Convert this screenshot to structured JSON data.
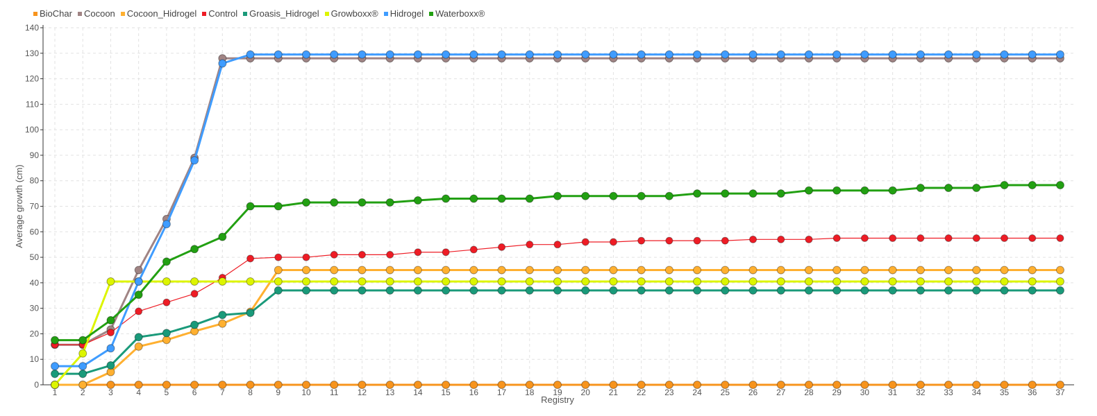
{
  "chart_data": {
    "type": "line",
    "title": "",
    "xlabel": "Registry",
    "ylabel": "Average growth (cm)",
    "ylim": [
      0,
      140
    ],
    "yticks": [
      0,
      10,
      20,
      30,
      40,
      50,
      60,
      70,
      80,
      90,
      100,
      110,
      120,
      130,
      140
    ],
    "x": [
      1,
      2,
      3,
      4,
      5,
      6,
      7,
      8,
      9,
      10,
      11,
      12,
      13,
      14,
      15,
      16,
      17,
      18,
      19,
      20,
      21,
      22,
      23,
      24,
      25,
      26,
      27,
      28,
      29,
      30,
      31,
      32,
      33,
      34,
      35,
      36,
      37
    ],
    "grid": true,
    "legend_position": "top-left",
    "series": [
      {
        "name": "BioChar",
        "color": "#f7941d",
        "values": [
          0,
          0,
          0,
          0,
          0,
          0,
          0,
          0,
          0,
          0,
          0,
          0,
          0,
          0,
          0,
          0,
          0,
          0,
          0,
          0,
          0,
          0,
          0,
          0,
          0,
          0,
          0,
          0,
          0,
          0,
          0,
          0,
          0,
          0,
          0,
          0,
          0
        ]
      },
      {
        "name": "Cocoon",
        "color": "#a08484",
        "values": [
          15.7,
          15.7,
          21.7,
          45,
          65,
          89,
          128,
          128,
          128,
          128,
          128,
          128,
          128,
          128,
          128,
          128,
          128,
          128,
          128,
          128,
          128,
          128,
          128,
          128,
          128,
          128,
          128,
          128,
          128,
          128,
          128,
          128,
          128,
          128,
          128,
          128,
          128
        ]
      },
      {
        "name": "Cocoon_Hidrogel",
        "color": "#ffb030",
        "values": [
          0,
          0,
          5,
          15,
          17.6,
          21,
          24,
          28.6,
          45,
          45,
          45,
          45,
          45,
          45,
          45,
          45,
          45,
          45,
          45,
          45,
          45,
          45,
          45,
          45,
          45,
          45,
          45,
          45,
          45,
          45,
          45,
          45,
          45,
          45,
          45,
          45,
          45
        ]
      },
      {
        "name": "Control",
        "color": "#ee1c25",
        "thin": true,
        "values": [
          15.7,
          15.7,
          20.5,
          28.8,
          32.3,
          35.7,
          42,
          49.5,
          50,
          50,
          51,
          51,
          51,
          52,
          52,
          53,
          54,
          55,
          55,
          56,
          56,
          56.5,
          56.5,
          56.5,
          56.5,
          57,
          57,
          57,
          57.5,
          57.5,
          57.5,
          57.5,
          57.5,
          57.5,
          57.5,
          57.5,
          57.5
        ]
      },
      {
        "name": "Groasis_Hidrogel",
        "color": "#1a9a7a",
        "values": [
          4.3,
          4.3,
          7.6,
          18.7,
          20.3,
          23.5,
          27.4,
          28.2,
          37,
          37,
          37,
          37,
          37,
          37,
          37,
          37,
          37,
          37,
          37,
          37,
          37,
          37,
          37,
          37,
          37,
          37,
          37,
          37,
          37,
          37,
          37,
          37,
          37,
          37,
          37,
          37,
          37
        ]
      },
      {
        "name": "Growboxx®",
        "color": "#ddf500",
        "values": [
          0,
          12.3,
          40.5,
          40.5,
          40.5,
          40.5,
          40.5,
          40.5,
          40.5,
          40.5,
          40.5,
          40.5,
          40.5,
          40.5,
          40.5,
          40.5,
          40.5,
          40.5,
          40.5,
          40.5,
          40.5,
          40.5,
          40.5,
          40.5,
          40.5,
          40.5,
          40.5,
          40.5,
          40.5,
          40.5,
          40.5,
          40.5,
          40.5,
          40.5,
          40.5,
          40.5,
          40.5
        ]
      },
      {
        "name": "Hidrogel",
        "color": "#3f9cff",
        "values": [
          7.3,
          7.3,
          14.3,
          40.5,
          63,
          88,
          126,
          129.5,
          129.5,
          129.5,
          129.5,
          129.5,
          129.5,
          129.5,
          129.5,
          129.5,
          129.5,
          129.5,
          129.5,
          129.5,
          129.5,
          129.5,
          129.5,
          129.5,
          129.5,
          129.5,
          129.5,
          129.5,
          129.5,
          129.5,
          129.5,
          129.5,
          129.5,
          129.5,
          129.5,
          129.5,
          129.5
        ]
      },
      {
        "name": "Waterboxx®",
        "color": "#22a012",
        "values": [
          17.5,
          17.5,
          25.3,
          35.3,
          48.3,
          53.2,
          58,
          70,
          70,
          71.5,
          71.5,
          71.5,
          71.5,
          72.3,
          73,
          73,
          73,
          73,
          74,
          74,
          74,
          74,
          74,
          75,
          75,
          75,
          75,
          76.2,
          76.2,
          76.2,
          76.2,
          77.2,
          77.2,
          77.2,
          78.3,
          78.3,
          78.3
        ]
      }
    ]
  }
}
